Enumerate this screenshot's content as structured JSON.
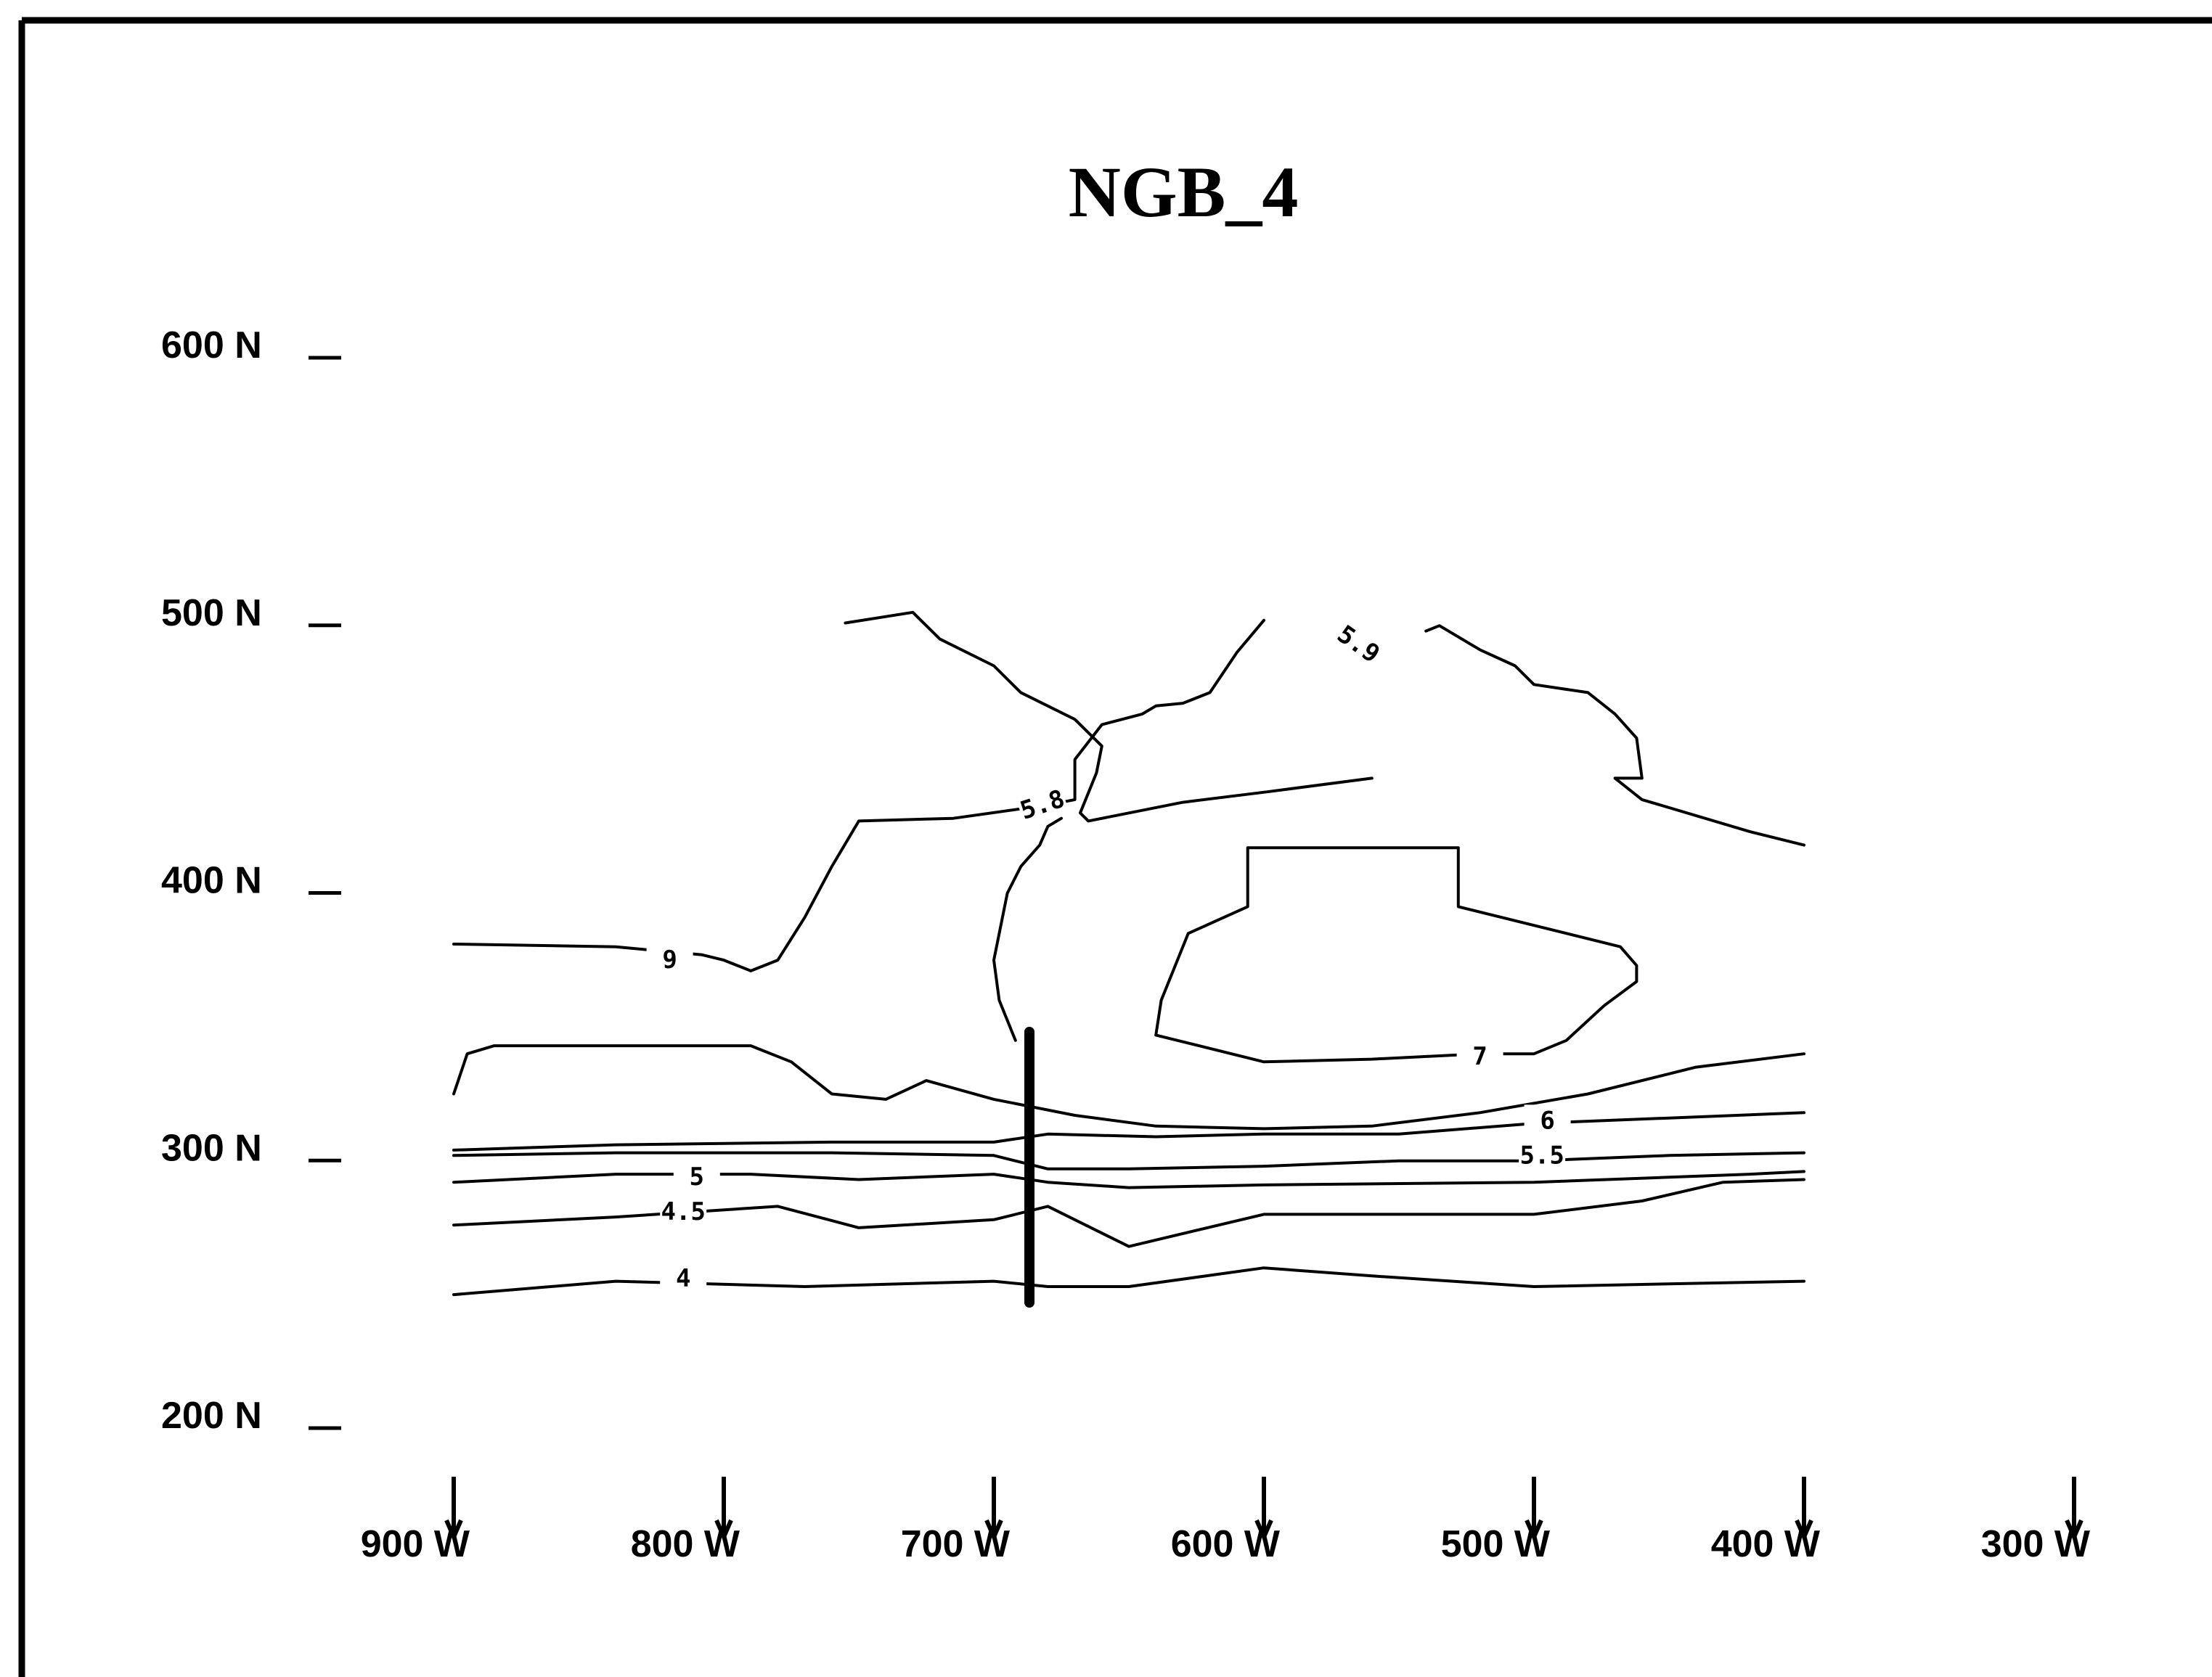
{
  "chart_data": {
    "type": "contour",
    "title": "NGB_4",
    "y_ticks": [
      "600 N",
      "500 N",
      "400 N",
      "300 N",
      "200 N"
    ],
    "x_ticks": [
      "900 W",
      "800 W",
      "700 W",
      "600 W",
      "500 W",
      "400 W",
      "300 W"
    ],
    "x_range": [
      900,
      300
    ],
    "y_range": [
      200,
      600
    ],
    "contour_labels": [
      "5.9",
      "5.8",
      "9",
      "7",
      "6",
      "5.5",
      "5",
      "4.5",
      "4"
    ],
    "contours": [
      {
        "level": "4",
        "points": [
          [
            900,
            245
          ],
          [
            840,
            250
          ],
          [
            770,
            248
          ],
          [
            700,
            250
          ],
          [
            680,
            248
          ],
          [
            650,
            248
          ],
          [
            600,
            255
          ],
          [
            560,
            252
          ],
          [
            500,
            248
          ],
          [
            400,
            250
          ]
        ]
      },
      {
        "level": "4.5",
        "points": [
          [
            900,
            271
          ],
          [
            840,
            274
          ],
          [
            780,
            278
          ],
          [
            750,
            270
          ],
          [
            700,
            273
          ],
          [
            680,
            278
          ],
          [
            650,
            263
          ],
          [
            600,
            275
          ],
          [
            560,
            275
          ],
          [
            500,
            275
          ],
          [
            460,
            280
          ],
          [
            430,
            287
          ],
          [
            400,
            288
          ]
        ]
      },
      {
        "level": "5",
        "points": [
          [
            900,
            287
          ],
          [
            840,
            290
          ],
          [
            790,
            290
          ],
          [
            750,
            288
          ],
          [
            700,
            290
          ],
          [
            680,
            287
          ],
          [
            650,
            285
          ],
          [
            600,
            286
          ],
          [
            500,
            287
          ],
          [
            420,
            290
          ],
          [
            400,
            291
          ]
        ]
      },
      {
        "level": "5.5",
        "points": [
          [
            900,
            297
          ],
          [
            840,
            298
          ],
          [
            760,
            298
          ],
          [
            700,
            297
          ],
          [
            680,
            292
          ],
          [
            650,
            292
          ],
          [
            600,
            293
          ],
          [
            550,
            295
          ],
          [
            500,
            295
          ],
          [
            450,
            297
          ],
          [
            400,
            298
          ]
        ]
      },
      {
        "level": "6",
        "points": [
          [
            900,
            299
          ],
          [
            840,
            301
          ],
          [
            760,
            302
          ],
          [
            700,
            302
          ],
          [
            680,
            305
          ],
          [
            640,
            304
          ],
          [
            600,
            305
          ],
          [
            550,
            305
          ],
          [
            500,
            309
          ],
          [
            450,
            311
          ],
          [
            400,
            313
          ]
        ]
      },
      {
        "level": "unlabeled",
        "points": [
          [
            900,
            320
          ],
          [
            895,
            335
          ],
          [
            885,
            338
          ],
          [
            830,
            338
          ],
          [
            790,
            338
          ],
          [
            775,
            332
          ],
          [
            760,
            320
          ],
          [
            740,
            318
          ],
          [
            725,
            325
          ],
          [
            700,
            318
          ],
          [
            670,
            312
          ],
          [
            640,
            308
          ],
          [
            600,
            307
          ],
          [
            560,
            308
          ],
          [
            520,
            313
          ],
          [
            480,
            320
          ],
          [
            440,
            330
          ],
          [
            400,
            335
          ]
        ]
      },
      {
        "level": "7",
        "points": [
          [
            640,
            342
          ],
          [
            638,
            355
          ],
          [
            628,
            380
          ],
          [
            606,
            390
          ],
          [
            606,
            412
          ],
          [
            528,
            412
          ],
          [
            528,
            402
          ],
          [
            528,
            390
          ],
          [
            468,
            375
          ],
          [
            462,
            368
          ],
          [
            462,
            362
          ],
          [
            474,
            353
          ],
          [
            488,
            340
          ],
          [
            500,
            335
          ],
          [
            520,
            335
          ],
          [
            560,
            333
          ],
          [
            600,
            332
          ],
          [
            640,
            342
          ]
        ]
      },
      {
        "level": "9",
        "points": [
          [
            900,
            376
          ],
          [
            840,
            375
          ],
          [
            808,
            372
          ],
          [
            800,
            370
          ],
          [
            790,
            366
          ],
          [
            780,
            370
          ],
          [
            770,
            386
          ],
          [
            760,
            405
          ],
          [
            750,
            422
          ],
          [
            715,
            423
          ],
          [
            680,
            428
          ],
          [
            670,
            430
          ],
          [
            670,
            445
          ],
          [
            660,
            458
          ],
          [
            645,
            462
          ],
          [
            640,
            465
          ],
          [
            630,
            466
          ],
          [
            620,
            470
          ],
          [
            610,
            485
          ],
          [
            600,
            497
          ]
        ]
      },
      {
        "level": "5.8",
        "points": [
          [
            560,
            438
          ],
          [
            598,
            433
          ],
          [
            630,
            429
          ],
          [
            665,
            422
          ],
          [
            668,
            425
          ],
          [
            662,
            440
          ],
          [
            660,
            450
          ],
          [
            670,
            460
          ],
          [
            690,
            470
          ],
          [
            700,
            480
          ],
          [
            720,
            490
          ],
          [
            730,
            500
          ],
          [
            755,
            496
          ]
        ]
      },
      {
        "level": "5.9",
        "points": [
          [
            540,
            493
          ],
          [
            535,
            495
          ],
          [
            520,
            486
          ],
          [
            507,
            480
          ],
          [
            500,
            473
          ],
          [
            480,
            470
          ],
          [
            470,
            462
          ],
          [
            462,
            453
          ],
          [
            460,
            438
          ],
          [
            470,
            438
          ],
          [
            460,
            430
          ],
          [
            420,
            418
          ],
          [
            400,
            413
          ]
        ]
      },
      {
        "level": "unlabeled",
        "points": [
          [
            692,
            340
          ],
          [
            698,
            355
          ],
          [
            700,
            370
          ],
          [
            695,
            395
          ],
          [
            690,
            405
          ],
          [
            683,
            413
          ],
          [
            680,
            420
          ],
          [
            675,
            423
          ]
        ]
      }
    ]
  }
}
